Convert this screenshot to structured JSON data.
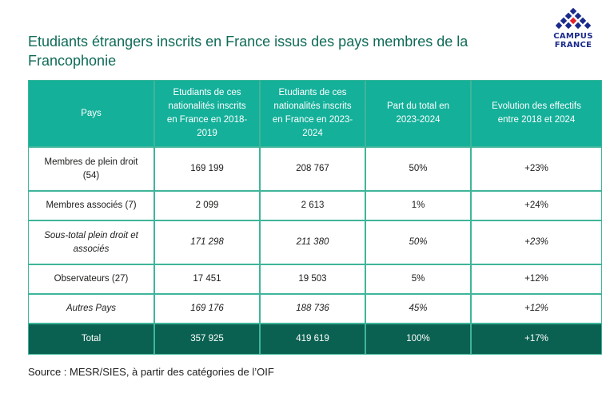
{
  "title": "Etudiants étrangers inscrits en France issus des pays membres de la Francophonie",
  "logo": {
    "line1": "CAMPUS",
    "line2": "FRANCE",
    "color_blue": "#1a2a8c",
    "color_red": "#e2222a"
  },
  "table": {
    "headers": [
      "Pays",
      "Etudiants de ces nationalités inscrits en France en 2018-2019",
      "Etudiants de ces nationalités inscrits en France en 2023-2024",
      "Part du total en 2023-2024",
      "Evolution des effectifs entre 2018 et 2024"
    ],
    "rows": [
      [
        "Membres de plein droit (54)",
        "169 199",
        "208 767",
        "50%",
        "+23%"
      ],
      [
        "Membres associés (7)",
        "2 099",
        "2 613",
        "1%",
        "+24%"
      ],
      [
        "Sous-total plein droit et associés",
        "171 298",
        "211 380",
        "50%",
        "+23%"
      ],
      [
        "Observateurs (27)",
        "17 451",
        "19 503",
        "5%",
        "+12%"
      ],
      [
        "Autres Pays",
        "169 176",
        "188 736",
        "45%",
        "+12%"
      ],
      [
        "Total",
        "357 925",
        "419 619",
        "100%",
        "+17%"
      ]
    ]
  },
  "source": "Source : MESR/SIES, à partir des catégories de l’OIF",
  "colors": {
    "header_bg": "#14b09a",
    "total_bg": "#0b6151",
    "title": "#0f6b57",
    "border": "#3fb59a"
  }
}
